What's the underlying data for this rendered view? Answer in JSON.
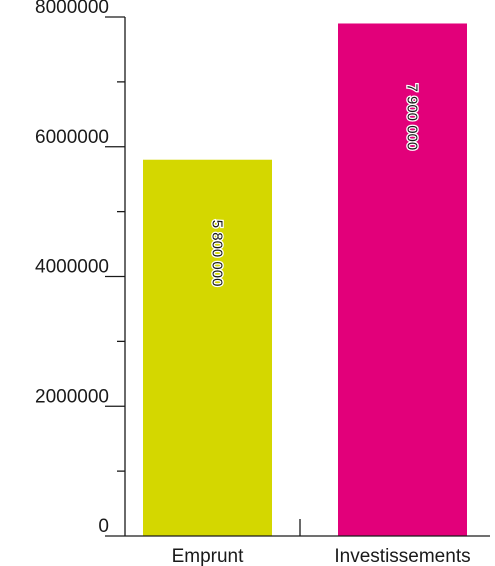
{
  "chart_data": {
    "type": "bar",
    "categories": [
      "Emprunt",
      "Investissements"
    ],
    "values": [
      5800000,
      7900000
    ],
    "data_labels": [
      "5 800 000",
      "7 900 000"
    ],
    "colors": [
      "#d4d700",
      "#e2007a"
    ],
    "ylim": [
      0,
      8000000
    ],
    "y_ticks": [
      {
        "value": 0,
        "label": "0"
      },
      {
        "value": 2000000,
        "label": "2000000"
      },
      {
        "value": 4000000,
        "label": "4000000"
      },
      {
        "value": 6000000,
        "label": "6000000"
      },
      {
        "value": 8000000,
        "label": "8000000"
      }
    ],
    "y_minor_ticks": [
      1000000,
      3000000,
      5000000,
      7000000
    ],
    "title": "",
    "xlabel": "",
    "ylabel": "",
    "grid": false,
    "legend": "none"
  }
}
